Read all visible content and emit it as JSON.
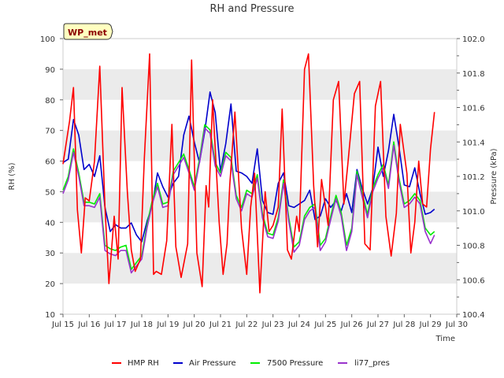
{
  "chart_data": {
    "type": "line",
    "title": "RH and Pressure",
    "xlabel": "Time",
    "ylabel": "RH (%)",
    "y2label": "Pressure (kPa)",
    "badge": "WP_met",
    "x_ticks": [
      "Jul 15",
      "Jul 16",
      "Jul 17",
      "Jul 18",
      "Jul 19",
      "Jul 20",
      "Jul 21",
      "Jul 22",
      "Jul 23",
      "Jul 24",
      "Jul 25",
      "Jul 26",
      "Jul 27",
      "Jul 28",
      "Jul 29",
      "Jul 30"
    ],
    "xlim": [
      15,
      30
    ],
    "ylim": [
      10,
      100
    ],
    "y_ticks": [
      10,
      20,
      30,
      40,
      50,
      60,
      70,
      80,
      90,
      100
    ],
    "y2lim": [
      100.4,
      102.0
    ],
    "y2_ticks": [
      "100.4",
      "100.6",
      "100.8",
      "101.0",
      "101.2",
      "101.4",
      "101.6",
      "101.8",
      "102.0"
    ],
    "grid": "horizontal-bands",
    "legend_position": "bottom",
    "colors": {
      "hmp_rh": "#ff0000",
      "air_pressure": "#0000cc",
      "p7500": "#00ee00",
      "li77": "#9933cc",
      "band": "#ebebeb",
      "badge_fill": "#ffffc0"
    },
    "series": [
      {
        "name": "HMP RH",
        "axis": "left",
        "key": "hmp_rh",
        "x": [
          15.0,
          15.25,
          15.4,
          15.55,
          15.7,
          15.85,
          16.0,
          16.2,
          16.4,
          16.6,
          16.75,
          16.95,
          17.1,
          17.25,
          17.45,
          17.6,
          17.75,
          17.95,
          18.1,
          18.3,
          18.45,
          18.55,
          18.75,
          18.95,
          19.15,
          19.3,
          19.5,
          19.75,
          19.9,
          20.1,
          20.3,
          20.45,
          20.55,
          20.7,
          20.95,
          21.1,
          21.25,
          21.35,
          21.55,
          21.8,
          22.0,
          22.15,
          22.3,
          22.5,
          22.7,
          22.85,
          23.0,
          23.2,
          23.35,
          23.55,
          23.7,
          23.9,
          24.0,
          24.2,
          24.35,
          24.55,
          24.7,
          24.85,
          25.1,
          25.3,
          25.5,
          25.7,
          25.85,
          26.1,
          26.3,
          26.5,
          26.7,
          26.9,
          27.1,
          27.3,
          27.5,
          27.7,
          27.85,
          28.1,
          28.25,
          28.4,
          28.55,
          28.7,
          28.85,
          29.0,
          29.15
        ],
        "values": [
          59,
          73,
          84,
          44,
          30,
          48,
          47,
          60,
          91,
          45,
          20,
          42,
          28,
          84,
          50,
          31,
          24,
          28,
          61,
          95,
          23,
          24,
          23,
          34,
          72,
          32,
          22,
          33,
          93,
          30,
          19,
          52,
          45,
          80,
          40,
          23,
          33,
          52,
          76,
          38,
          23,
          45,
          56,
          17,
          50,
          37,
          39,
          45,
          77,
          31,
          28,
          42,
          37,
          90,
          95,
          52,
          32,
          54,
          39,
          80,
          86,
          46,
          59,
          82,
          86,
          33,
          31,
          78,
          86,
          42,
          29,
          43,
          72,
          56,
          30,
          40,
          60,
          46,
          45,
          64,
          76
        ]
      },
      {
        "name": "Air Pressure",
        "axis": "right",
        "key": "air_pressure",
        "x": [
          15.0,
          15.2,
          15.4,
          15.6,
          15.8,
          16.0,
          16.2,
          16.4,
          16.6,
          16.8,
          17.0,
          17.2,
          17.4,
          17.6,
          17.8,
          18.0,
          18.2,
          18.4,
          18.6,
          18.8,
          19.0,
          19.2,
          19.4,
          19.6,
          19.8,
          20.0,
          20.2,
          20.4,
          20.6,
          20.8,
          21.0,
          21.2,
          21.4,
          21.6,
          21.8,
          22.0,
          22.2,
          22.4,
          22.6,
          22.8,
          23.0,
          23.2,
          23.4,
          23.6,
          23.8,
          24.0,
          24.2,
          24.4,
          24.6,
          24.8,
          25.0,
          25.2,
          25.4,
          25.6,
          25.8,
          26.0,
          26.2,
          26.4,
          26.6,
          26.8,
          27.0,
          27.2,
          27.4,
          27.6,
          27.8,
          28.0,
          28.2,
          28.4,
          28.6,
          28.8,
          29.0,
          29.15
        ],
        "values": [
          101.28,
          101.3,
          101.53,
          101.44,
          101.24,
          101.27,
          101.2,
          101.32,
          101.02,
          100.88,
          100.92,
          100.9,
          100.9,
          100.93,
          100.86,
          100.82,
          100.94,
          101.03,
          101.22,
          101.14,
          101.08,
          101.16,
          101.2,
          101.44,
          101.55,
          101.4,
          101.28,
          101.46,
          101.69,
          101.57,
          101.23,
          101.39,
          101.62,
          101.23,
          101.22,
          101.2,
          101.16,
          101.36,
          101.06,
          100.99,
          100.98,
          101.16,
          101.22,
          101.03,
          101.02,
          101.04,
          101.06,
          101.12,
          100.95,
          100.97,
          101.07,
          101.02,
          101.06,
          101.0,
          101.1,
          100.99,
          101.24,
          101.13,
          101.04,
          101.13,
          101.37,
          101.2,
          101.35,
          101.56,
          101.37,
          101.15,
          101.14,
          101.25,
          101.1,
          100.98,
          100.99,
          101.01
        ]
      },
      {
        "name": "7500 Pressure",
        "axis": "right",
        "key": "p7500",
        "x": [
          15.0,
          15.2,
          15.4,
          15.6,
          15.8,
          16.0,
          16.2,
          16.4,
          16.6,
          16.8,
          17.0,
          17.2,
          17.4,
          17.6,
          17.8,
          18.0,
          18.2,
          18.4,
          18.6,
          18.8,
          19.0,
          19.2,
          19.4,
          19.6,
          19.8,
          20.0,
          20.2,
          20.4,
          20.6,
          20.8,
          21.0,
          21.2,
          21.4,
          21.6,
          21.8,
          22.0,
          22.2,
          22.4,
          22.6,
          22.8,
          23.0,
          23.2,
          23.4,
          23.6,
          23.8,
          24.0,
          24.2,
          24.4,
          24.6,
          24.8,
          25.0,
          25.2,
          25.4,
          25.6,
          25.8,
          26.0,
          26.2,
          26.4,
          26.6,
          26.8,
          27.0,
          27.2,
          27.4,
          27.6,
          27.8,
          28.0,
          28.2,
          28.4,
          28.6,
          28.8,
          29.0,
          29.15
        ],
        "values": [
          101.12,
          101.2,
          101.36,
          101.22,
          101.05,
          101.05,
          101.04,
          101.1,
          100.8,
          100.78,
          100.77,
          100.79,
          100.8,
          100.66,
          100.7,
          100.74,
          100.92,
          101.06,
          101.16,
          101.04,
          101.05,
          101.23,
          101.28,
          101.33,
          101.24,
          101.14,
          101.3,
          101.5,
          101.47,
          101.28,
          101.22,
          101.34,
          101.31,
          101.09,
          101.02,
          101.12,
          101.1,
          101.21,
          100.98,
          100.87,
          100.86,
          100.96,
          101.18,
          100.96,
          100.79,
          100.82,
          100.97,
          101.02,
          101.04,
          100.8,
          100.84,
          100.97,
          101.09,
          100.99,
          100.8,
          100.9,
          101.23,
          101.1,
          100.98,
          101.13,
          101.21,
          101.27,
          101.15,
          101.4,
          101.19,
          101.04,
          101.06,
          101.1,
          101.06,
          100.9,
          100.86,
          100.88
        ]
      },
      {
        "name": "li77_pres",
        "axis": "right",
        "key": "li77",
        "x": [
          15.0,
          15.2,
          15.4,
          15.6,
          15.8,
          16.0,
          16.2,
          16.4,
          16.6,
          16.8,
          17.0,
          17.2,
          17.4,
          17.6,
          17.8,
          18.0,
          18.2,
          18.4,
          18.6,
          18.8,
          19.0,
          19.2,
          19.4,
          19.6,
          19.8,
          20.0,
          20.2,
          20.4,
          20.6,
          20.8,
          21.0,
          21.2,
          21.4,
          21.6,
          21.8,
          22.0,
          22.2,
          22.4,
          22.6,
          22.8,
          23.0,
          23.2,
          23.4,
          23.6,
          23.8,
          24.0,
          24.2,
          24.4,
          24.6,
          24.8,
          25.0,
          25.2,
          25.4,
          25.6,
          25.8,
          26.0,
          26.2,
          26.4,
          26.6,
          26.8,
          27.0,
          27.2,
          27.4,
          27.6,
          27.8,
          28.0,
          28.2,
          28.4,
          28.6,
          28.8,
          29.0,
          29.15
        ],
        "values": [
          101.1,
          101.18,
          101.34,
          101.2,
          101.03,
          101.03,
          101.02,
          101.08,
          100.77,
          100.75,
          100.74,
          100.77,
          100.77,
          100.64,
          100.68,
          100.72,
          100.9,
          101.04,
          101.14,
          101.02,
          101.03,
          101.21,
          101.26,
          101.31,
          101.22,
          101.12,
          101.28,
          101.48,
          101.45,
          101.26,
          101.2,
          101.32,
          101.29,
          101.07,
          101.0,
          101.1,
          101.08,
          101.19,
          100.96,
          100.85,
          100.84,
          100.94,
          101.16,
          100.94,
          100.76,
          100.8,
          100.95,
          101.0,
          101.02,
          100.77,
          100.82,
          100.95,
          101.07,
          100.97,
          100.77,
          100.88,
          101.21,
          101.08,
          100.96,
          101.11,
          101.19,
          101.25,
          101.13,
          101.38,
          101.17,
          101.02,
          101.04,
          101.08,
          101.04,
          100.88,
          100.81,
          100.86
        ]
      }
    ]
  }
}
